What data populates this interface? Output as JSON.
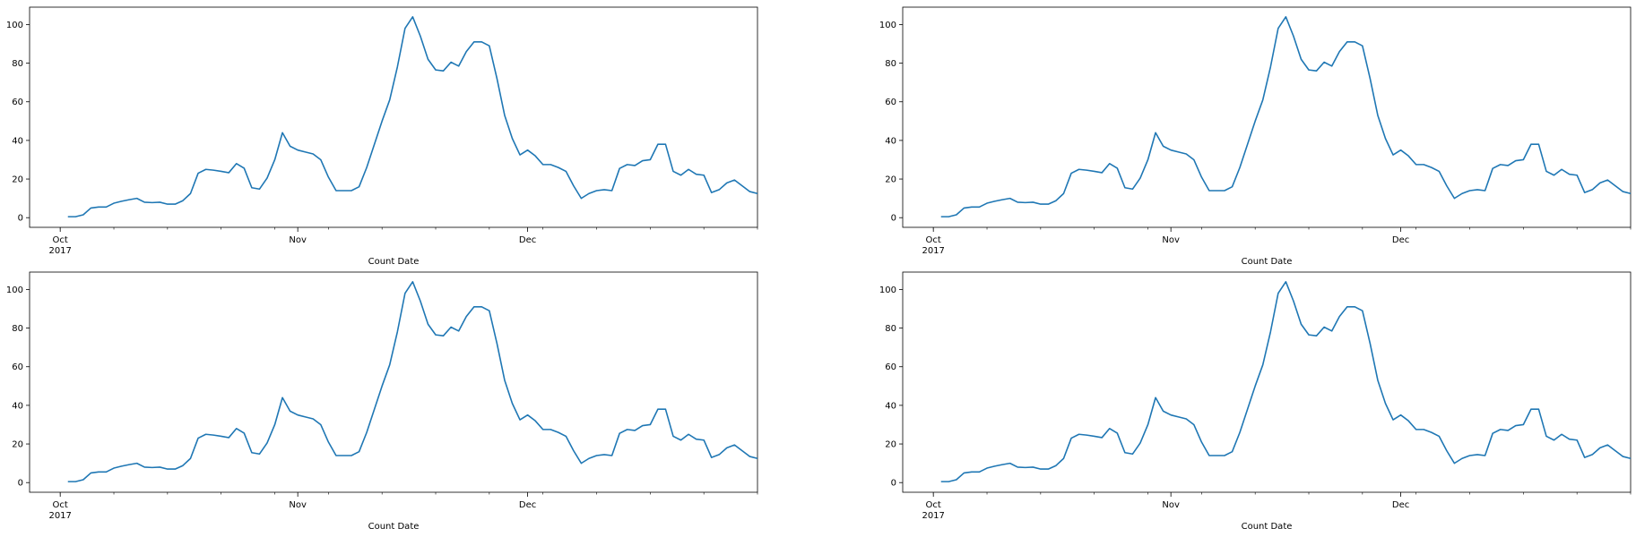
{
  "chart_data": [
    {
      "type": "line",
      "xlabel": "Count Date",
      "ylabel": "",
      "ylim": [
        -5,
        109
      ],
      "xlim": [
        "2017-09-27",
        "2017-12-31"
      ],
      "yticks": [
        0,
        20,
        40,
        60,
        80,
        100
      ],
      "xticks_major": [
        {
          "date": "2017-10-01",
          "label": "Oct",
          "sublabel": "2017"
        },
        {
          "date": "2017-11-01",
          "label": "Nov",
          "sublabel": ""
        },
        {
          "date": "2017-12-01",
          "label": "Dec",
          "sublabel": ""
        }
      ],
      "series": [
        {
          "color": "#1f77b4",
          "start_date": "2017-10-02",
          "values": [
            0.5,
            0.5,
            1.5,
            5,
            5.5,
            5.5,
            7.5,
            8.5,
            9.3,
            10,
            8,
            7.8,
            8,
            7,
            7,
            8.8,
            12.5,
            23,
            25,
            24.6,
            24,
            23.3,
            28,
            25.6,
            15.5,
            14.8,
            20.5,
            30,
            44,
            37,
            35,
            34,
            33,
            30,
            21,
            14,
            14,
            14,
            16,
            26,
            38,
            50,
            61,
            78,
            98,
            104,
            94,
            82,
            76.5,
            76,
            80.5,
            78.5,
            86,
            91,
            91,
            89,
            72,
            53,
            41,
            32.5,
            35,
            32,
            27.5,
            27.5,
            26,
            24,
            16.5,
            10,
            12.5,
            14,
            14.5,
            14,
            25.5,
            27.5,
            27,
            29.5,
            30,
            38,
            38,
            24,
            22,
            25,
            22.5,
            22,
            13,
            14.5,
            18,
            19.5,
            16.5,
            13.5,
            12.5
          ]
        }
      ]
    },
    {
      "type": "line",
      "xlabel": "Count Date",
      "ylabel": "",
      "ylim": [
        -5,
        109
      ],
      "xlim": [
        "2017-09-27",
        "2017-12-31"
      ],
      "yticks": [
        0,
        20,
        40,
        60,
        80,
        100
      ],
      "xticks_major": [
        {
          "date": "2017-10-01",
          "label": "Oct",
          "sublabel": "2017"
        },
        {
          "date": "2017-11-01",
          "label": "Nov",
          "sublabel": ""
        },
        {
          "date": "2017-12-01",
          "label": "Dec",
          "sublabel": ""
        }
      ],
      "series": [
        {
          "color": "#1f77b4",
          "start_date": "2017-10-02",
          "values": [
            0.5,
            0.5,
            1.5,
            5,
            5.5,
            5.5,
            7.5,
            8.5,
            9.3,
            10,
            8,
            7.8,
            8,
            7,
            7,
            8.8,
            12.5,
            23,
            25,
            24.6,
            24,
            23.3,
            28,
            25.6,
            15.5,
            14.8,
            20.5,
            30,
            44,
            37,
            35,
            34,
            33,
            30,
            21,
            14,
            14,
            14,
            16,
            26,
            38,
            50,
            61,
            78,
            98,
            104,
            94,
            82,
            76.5,
            76,
            80.5,
            78.5,
            86,
            91,
            91,
            89,
            72,
            53,
            41,
            32.5,
            35,
            32,
            27.5,
            27.5,
            26,
            24,
            16.5,
            10,
            12.5,
            14,
            14.5,
            14,
            25.5,
            27.5,
            27,
            29.5,
            30,
            38,
            38,
            24,
            22,
            25,
            22.5,
            22,
            13,
            14.5,
            18,
            19.5,
            16.5,
            13.5,
            12.5
          ]
        }
      ]
    },
    {
      "type": "line",
      "xlabel": "Count Date",
      "ylabel": "",
      "ylim": [
        -5,
        109
      ],
      "xlim": [
        "2017-09-27",
        "2017-12-31"
      ],
      "yticks": [
        0,
        20,
        40,
        60,
        80,
        100
      ],
      "xticks_major": [
        {
          "date": "2017-10-01",
          "label": "Oct",
          "sublabel": "2017"
        },
        {
          "date": "2017-11-01",
          "label": "Nov",
          "sublabel": ""
        },
        {
          "date": "2017-12-01",
          "label": "Dec",
          "sublabel": ""
        }
      ],
      "series": [
        {
          "color": "#1f77b4",
          "start_date": "2017-10-02",
          "values": [
            0.5,
            0.5,
            1.5,
            5,
            5.5,
            5.5,
            7.5,
            8.5,
            9.3,
            10,
            8,
            7.8,
            8,
            7,
            7,
            8.8,
            12.5,
            23,
            25,
            24.6,
            24,
            23.3,
            28,
            25.6,
            15.5,
            14.8,
            20.5,
            30,
            44,
            37,
            35,
            34,
            33,
            30,
            21,
            14,
            14,
            14,
            16,
            26,
            38,
            50,
            61,
            78,
            98,
            104,
            94,
            82,
            76.5,
            76,
            80.5,
            78.5,
            86,
            91,
            91,
            89,
            72,
            53,
            41,
            32.5,
            35,
            32,
            27.5,
            27.5,
            26,
            24,
            16.5,
            10,
            12.5,
            14,
            14.5,
            14,
            25.5,
            27.5,
            27,
            29.5,
            30,
            38,
            38,
            24,
            22,
            25,
            22.5,
            22,
            13,
            14.5,
            18,
            19.5,
            16.5,
            13.5,
            12.5
          ]
        }
      ]
    },
    {
      "type": "line",
      "xlabel": "Count Date",
      "ylabel": "",
      "ylim": [
        -5,
        109
      ],
      "xlim": [
        "2017-09-27",
        "2017-12-31"
      ],
      "yticks": [
        0,
        20,
        40,
        60,
        80,
        100
      ],
      "xticks_major": [
        {
          "date": "2017-10-01",
          "label": "Oct",
          "sublabel": "2017"
        },
        {
          "date": "2017-11-01",
          "label": "Nov",
          "sublabel": ""
        },
        {
          "date": "2017-12-01",
          "label": "Dec",
          "sublabel": ""
        }
      ],
      "series": [
        {
          "color": "#1f77b4",
          "start_date": "2017-10-02",
          "values": [
            0.5,
            0.5,
            1.5,
            5,
            5.5,
            5.5,
            7.5,
            8.5,
            9.3,
            10,
            8,
            7.8,
            8,
            7,
            7,
            8.8,
            12.5,
            23,
            25,
            24.6,
            24,
            23.3,
            28,
            25.6,
            15.5,
            14.8,
            20.5,
            30,
            44,
            37,
            35,
            34,
            33,
            30,
            21,
            14,
            14,
            14,
            16,
            26,
            38,
            50,
            61,
            78,
            98,
            104,
            94,
            82,
            76.5,
            76,
            80.5,
            78.5,
            86,
            91,
            91,
            89,
            72,
            53,
            41,
            32.5,
            35,
            32,
            27.5,
            27.5,
            26,
            24,
            16.5,
            10,
            12.5,
            14,
            14.5,
            14,
            25.5,
            27.5,
            27,
            29.5,
            30,
            38,
            38,
            24,
            22,
            25,
            22.5,
            22,
            13,
            14.5,
            18,
            19.5,
            16.5,
            13.5,
            12.5
          ]
        }
      ]
    }
  ]
}
